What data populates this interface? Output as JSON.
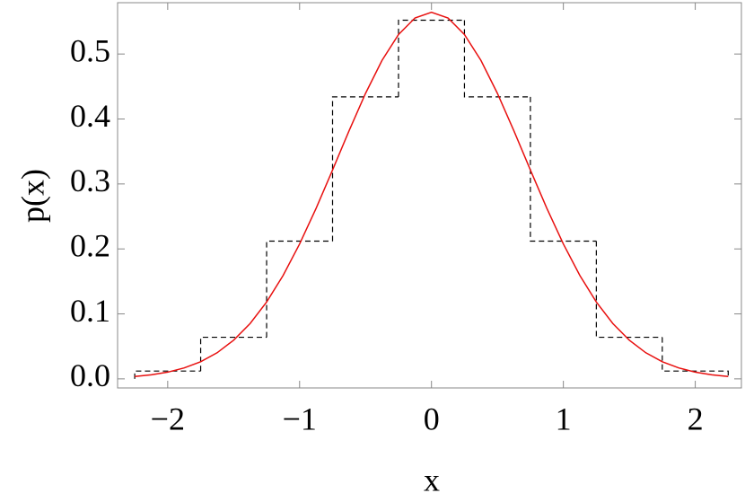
{
  "chart_data": {
    "type": "histogram",
    "xlabel": "x",
    "ylabel": "p(x)",
    "xlim": [
      -2.38,
      2.35
    ],
    "ylim": [
      -0.014,
      0.579
    ],
    "xticks": [
      {
        "value": -2,
        "label": "−2"
      },
      {
        "value": -1,
        "label": "−1"
      },
      0,
      1,
      2
    ],
    "yticks": [
      {
        "value": 0,
        "label": "0.0"
      },
      0.1,
      0.2,
      0.3,
      0.4,
      0.5
    ],
    "bins": [
      -2.25,
      -1.75,
      -1.25,
      -0.75,
      -0.25,
      0.25,
      0.75,
      1.25,
      1.75,
      2.25
    ],
    "values": [
      0.012,
      0.064,
      0.212,
      0.434,
      0.552,
      0.434,
      0.212,
      0.064,
      0.012
    ],
    "color": "#000000",
    "series": [
      {
        "type": "line",
        "color": "#e8100f",
        "x": [
          -2.25,
          -2.125,
          -2,
          -1.875,
          -1.75,
          -1.625,
          -1.5,
          -1.375,
          -1.25,
          -1.125,
          -1,
          -0.875,
          -0.75,
          -0.625,
          -0.5,
          -0.375,
          -0.25,
          -0.125,
          0,
          0.125,
          0.25,
          0.375,
          0.5,
          0.625,
          0.75,
          0.875,
          1,
          1.125,
          1.25,
          1.375,
          1.5,
          1.625,
          1.75,
          1.875,
          2,
          2.125,
          2.25
        ],
        "values": [
          0.0036,
          0.0062,
          0.0103,
          0.0168,
          0.0264,
          0.0402,
          0.0595,
          0.0852,
          0.1183,
          0.1591,
          0.2076,
          0.2624,
          0.3215,
          0.3818,
          0.4394,
          0.4902,
          0.53,
          0.5555,
          0.5642,
          0.5555,
          0.53,
          0.4902,
          0.4394,
          0.3818,
          0.3215,
          0.2624,
          0.2076,
          0.1591,
          0.1183,
          0.0852,
          0.0595,
          0.0402,
          0.0264,
          0.0168,
          0.0103,
          0.0062,
          0.0036
        ]
      }
    ]
  }
}
